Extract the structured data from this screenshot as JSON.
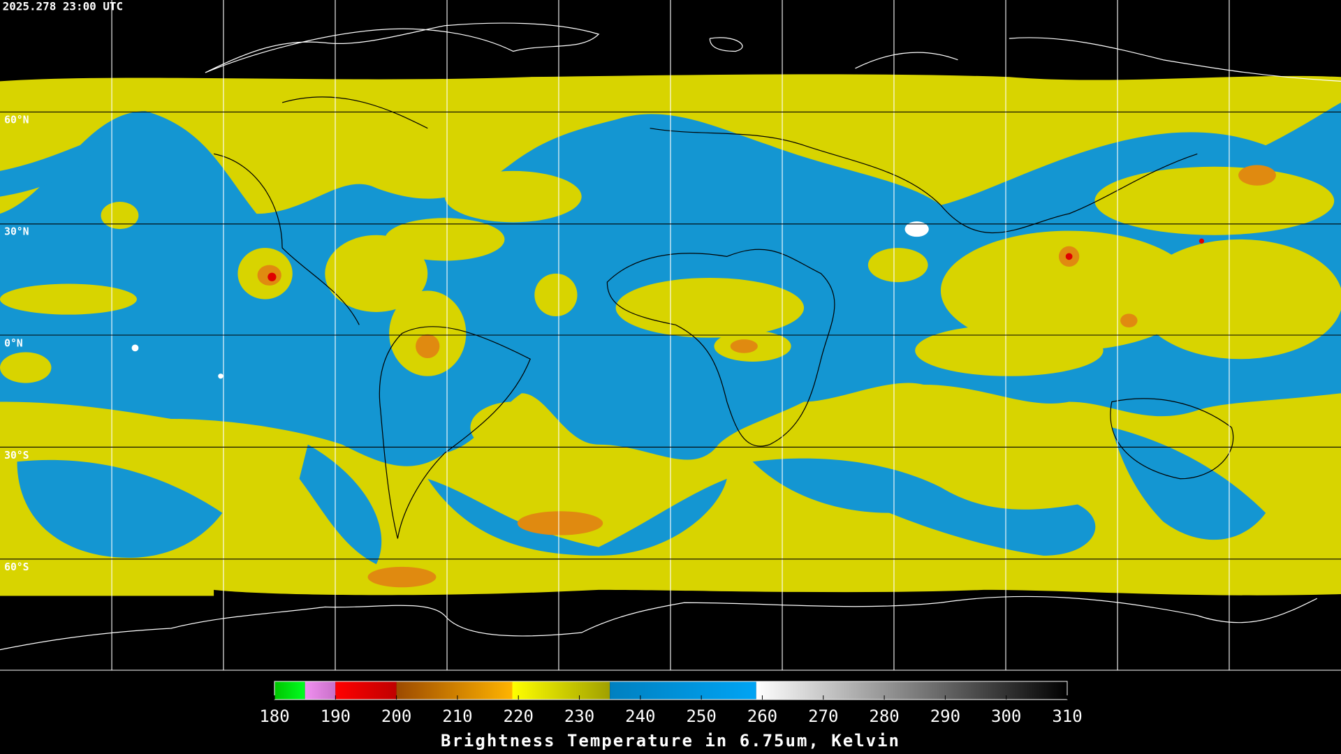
{
  "header": {
    "timestamp": "2025.278 23:00 UTC"
  },
  "map": {
    "lat_labels": [
      "60°N",
      "30°N",
      "0°N",
      "30°S",
      "60°S"
    ]
  },
  "colorbar": {
    "label": "Brightness Temperature in 6.75um, Kelvin",
    "range": [
      180,
      310
    ],
    "ticks": [
      180,
      190,
      200,
      210,
      220,
      230,
      240,
      250,
      260,
      270,
      280,
      290,
      300,
      310
    ],
    "segments": [
      {
        "from": 180,
        "to": 185,
        "colors": [
          "#00c400",
          "#00ff20"
        ]
      },
      {
        "from": 185,
        "to": 190,
        "colors": [
          "#f090f0",
          "#c870c8"
        ]
      },
      {
        "from": 190,
        "to": 200,
        "colors": [
          "#ff0000",
          "#c00000"
        ]
      },
      {
        "from": 200,
        "to": 219,
        "colors": [
          "#9c4a00",
          "#ffb400"
        ]
      },
      {
        "from": 219,
        "to": 235,
        "colors": [
          "#ffff00",
          "#a0a000"
        ]
      },
      {
        "from": 235,
        "to": 259,
        "colors": [
          "#0080c0",
          "#00a4f4"
        ]
      },
      {
        "from": 259,
        "to": 310,
        "colors": [
          "#ffffff",
          "#000000"
        ]
      }
    ]
  }
}
